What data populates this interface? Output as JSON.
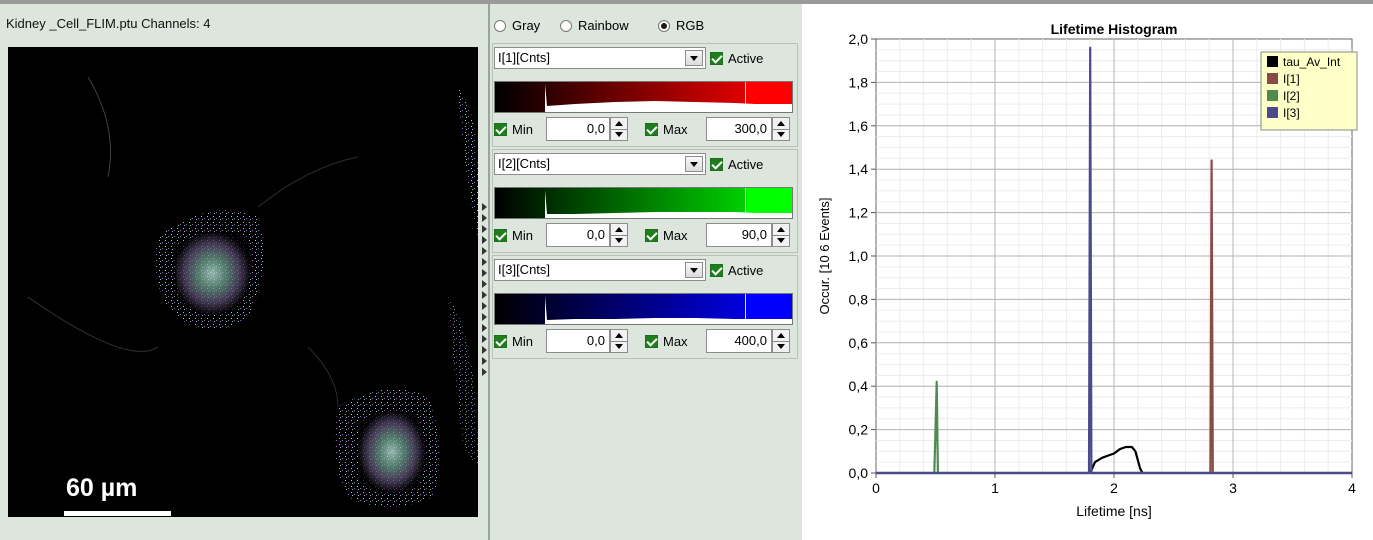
{
  "image_panel": {
    "title": "Kidney _Cell_FLIM.ptu Channels: 4",
    "scale_bar_label": "60 µm"
  },
  "display_mode": {
    "options": [
      {
        "label": "Gray",
        "selected": false
      },
      {
        "label": "Rainbow",
        "selected": false
      },
      {
        "label": "RGB",
        "selected": true
      }
    ]
  },
  "channels": [
    {
      "name": "I[1][Cnts]",
      "active_label": "Active",
      "active": true,
      "color": "#ff0000",
      "min_label": "Min",
      "min": "0,0",
      "max_label": "Max",
      "max": "300,0"
    },
    {
      "name": "I[2][Cnts]",
      "active_label": "Active",
      "active": true,
      "color": "#00ff00",
      "min_label": "Min",
      "min": "0,0",
      "max_label": "Max",
      "max": "90,0"
    },
    {
      "name": "I[3][Cnts]",
      "active_label": "Active",
      "active": true,
      "color": "#0000ff",
      "min_label": "Min",
      "min": "0,0",
      "max_label": "Max",
      "max": "400,0"
    }
  ],
  "chart_data": {
    "type": "line",
    "title": "Lifetime Histogram",
    "xlabel": "Lifetime [ns]",
    "ylabel": "Occur. [10 6 Events]",
    "xlim": [
      0,
      4
    ],
    "ylim": [
      0,
      2.0
    ],
    "x_ticks": [
      "0",
      "1",
      "2",
      "3",
      "4"
    ],
    "y_ticks": [
      "0,0",
      "0,2",
      "0,4",
      "0,6",
      "0,8",
      "1,0",
      "1,2",
      "1,4",
      "1,6",
      "1,8",
      "2,0"
    ],
    "grid": true,
    "legend_position": "top-right",
    "series": [
      {
        "name": "tau_Av_Int",
        "color": "#000000",
        "points": [
          [
            1.8,
            0
          ],
          [
            1.84,
            0.05
          ],
          [
            1.9,
            0.07
          ],
          [
            1.95,
            0.08
          ],
          [
            2.0,
            0.09
          ],
          [
            2.05,
            0.11
          ],
          [
            2.1,
            0.12
          ],
          [
            2.15,
            0.12
          ],
          [
            2.18,
            0.1
          ],
          [
            2.22,
            0.02
          ],
          [
            2.24,
            0
          ]
        ]
      },
      {
        "name": "I[1]",
        "color": "#8b4a4a",
        "points": [
          [
            0,
            0
          ],
          [
            2.81,
            0
          ],
          [
            2.82,
            1.44
          ],
          [
            2.83,
            0
          ],
          [
            4,
            0
          ]
        ]
      },
      {
        "name": "I[2]",
        "color": "#4f8a4f",
        "points": [
          [
            0,
            0
          ],
          [
            0.49,
            0
          ],
          [
            0.5,
            0.2
          ],
          [
            0.51,
            0.42
          ],
          [
            0.52,
            0
          ],
          [
            4,
            0
          ]
        ]
      },
      {
        "name": "I[3]",
        "color": "#4a4a8c",
        "points": [
          [
            0,
            0
          ],
          [
            1.79,
            0
          ],
          [
            1.8,
            1.96
          ],
          [
            1.81,
            0
          ],
          [
            4,
            0
          ]
        ]
      }
    ]
  }
}
